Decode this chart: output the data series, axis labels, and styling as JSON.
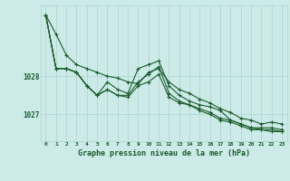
{
  "bg_color": "#cceae8",
  "grid_color": "#aad4d2",
  "line_color": "#1a5c2a",
  "title": "Graphe pression niveau de la mer (hPa)",
  "xlabel_hours": [
    0,
    1,
    2,
    3,
    4,
    5,
    6,
    7,
    8,
    9,
    10,
    11,
    12,
    13,
    14,
    15,
    16,
    17,
    18,
    19,
    20,
    21,
    22,
    23
  ],
  "yticks": [
    1027,
    1028
  ],
  "ylim": [
    1026.3,
    1029.85
  ],
  "xlim": [
    -0.5,
    23.5
  ],
  "line1": [
    1029.6,
    1029.1,
    1028.55,
    1028.3,
    1028.2,
    1028.1,
    1028.0,
    1027.95,
    1027.85,
    1027.8,
    1028.1,
    1028.2,
    1027.85,
    1027.65,
    1027.55,
    1027.4,
    1027.3,
    1027.15,
    1027.05,
    1026.9,
    1026.85,
    1026.75,
    1026.8,
    1026.75
  ],
  "line2": [
    1029.6,
    1028.2,
    1028.2,
    1028.1,
    1027.75,
    1027.5,
    1027.85,
    1027.65,
    1027.55,
    1028.2,
    1028.3,
    1028.4,
    1027.75,
    1027.5,
    1027.35,
    1027.25,
    1027.2,
    1027.1,
    1026.85,
    1026.75,
    1026.65,
    1026.65,
    1026.65,
    1026.6
  ],
  "line3": [
    1029.6,
    1028.2,
    1028.2,
    1028.1,
    1027.75,
    1027.5,
    1027.65,
    1027.5,
    1027.5,
    1027.85,
    1028.05,
    1028.25,
    1027.55,
    1027.35,
    1027.25,
    1027.15,
    1027.05,
    1026.9,
    1026.85,
    1026.75,
    1026.65,
    1026.6,
    1026.6,
    1026.55
  ],
  "line4": [
    1029.6,
    1028.2,
    1028.2,
    1028.1,
    1027.75,
    1027.5,
    1027.65,
    1027.5,
    1027.45,
    1027.75,
    1027.85,
    1028.05,
    1027.45,
    1027.3,
    1027.25,
    1027.1,
    1027.0,
    1026.85,
    1026.8,
    1026.7,
    1026.6,
    1026.6,
    1026.55,
    1026.55
  ]
}
